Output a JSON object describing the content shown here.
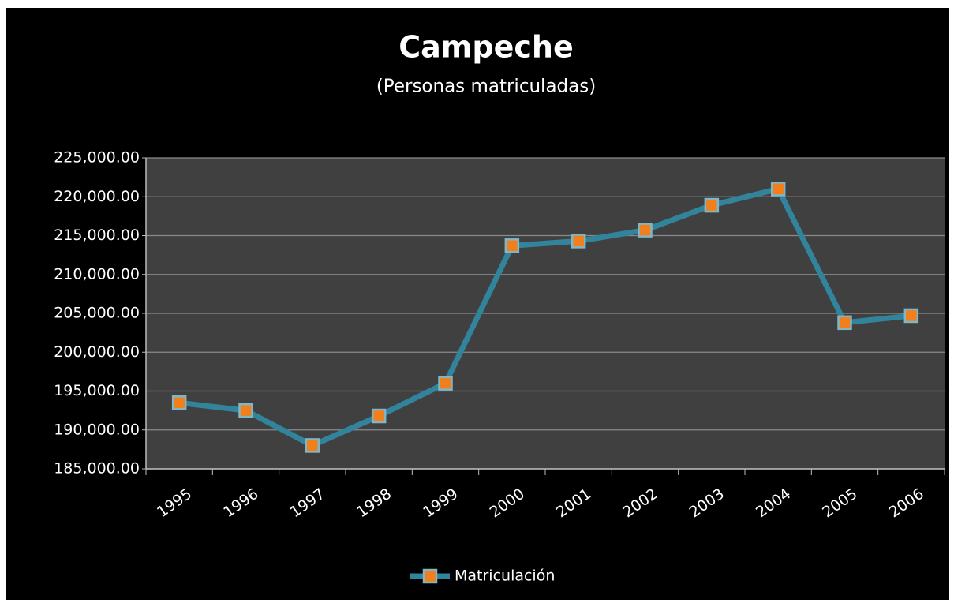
{
  "chart_data": {
    "type": "line",
    "title": "Campeche",
    "subtitle": "(Personas matriculadas)",
    "categories": [
      "1995",
      "1996",
      "1997",
      "1998",
      "1999",
      "2000",
      "2001",
      "2002",
      "2003",
      "2004",
      "2005",
      "2006"
    ],
    "series": [
      {
        "name": "Matriculación",
        "color": "#31849b",
        "values": [
          193500,
          192500,
          188000,
          191800,
          196000,
          213700,
          214300,
          215700,
          218900,
          221000,
          203800,
          204700
        ]
      }
    ],
    "ylim": [
      185000,
      225000
    ],
    "yticks": [
      {
        "value": 185000,
        "label": "185,000.00"
      },
      {
        "value": 190000,
        "label": "190,000.00"
      },
      {
        "value": 195000,
        "label": "195,000.00"
      },
      {
        "value": 200000,
        "label": "200,000.00"
      },
      {
        "value": 205000,
        "label": "205,000.00"
      },
      {
        "value": 210000,
        "label": "210,000.00"
      },
      {
        "value": 215000,
        "label": "215,000.00"
      },
      {
        "value": 220000,
        "label": "220,000.00"
      },
      {
        "value": 225000,
        "label": "225,000.00"
      }
    ],
    "grid": true,
    "legend": "bottom"
  }
}
